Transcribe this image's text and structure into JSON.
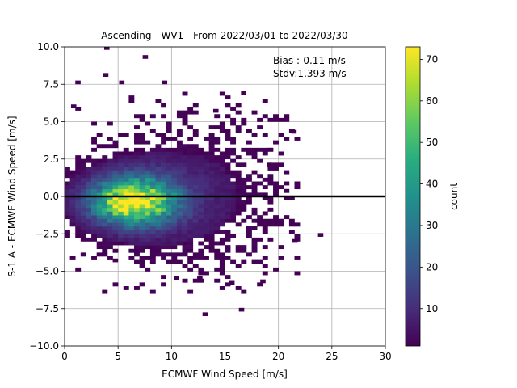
{
  "chart_data": {
    "type": "heatmap",
    "title": "Ascending - WV1 - From 2022/03/01 to 2022/03/30",
    "xlabel": "ECMWF Wind Speed [m/s]",
    "ylabel": "S-1 A - ECMWF Wind Speed [m/s]",
    "xlim": [
      0,
      30
    ],
    "ylim": [
      -10,
      10
    ],
    "x_ticks": [
      "0",
      "5",
      "10",
      "15",
      "20",
      "25",
      "30"
    ],
    "y_ticks": [
      "−10.0",
      "−7.5",
      "−5.0",
      "−2.5",
      "0.0",
      "2.5",
      "5.0",
      "7.5",
      "10.0"
    ],
    "grid": true,
    "reference_line_y": 0,
    "annotation": [
      "Bias :-0.11 m/s",
      "Stdv:1.393 m/s"
    ],
    "colorbar": {
      "label": "count",
      "colormap": "viridis",
      "range": [
        1,
        73
      ],
      "ticks": [
        "10",
        "20",
        "30",
        "40",
        "50",
        "60",
        "70"
      ]
    },
    "density_peak": {
      "x": 6.5,
      "y": -0.3,
      "count": 73
    },
    "sparse_bins": [
      [
        3.7,
        9.8
      ],
      [
        7.3,
        9.2
      ],
      [
        3.6,
        8.0
      ],
      [
        1.0,
        7.5
      ],
      [
        5.1,
        7.5
      ],
      [
        9.1,
        7.5
      ],
      [
        16.5,
        6.8
      ],
      [
        0.6,
        5.9
      ],
      [
        13.9,
        5.6
      ],
      [
        21.2,
        4.2
      ],
      [
        19.0,
        3.0
      ],
      [
        18.9,
        2.0
      ],
      [
        23.7,
        -2.7
      ],
      [
        21.3,
        -3.1
      ],
      [
        4.5,
        -4.4
      ],
      [
        10.2,
        -5.6
      ],
      [
        12.4,
        -5.6
      ],
      [
        15.4,
        -5.9
      ],
      [
        18.3,
        -5.8
      ],
      [
        12.9,
        -8.0
      ],
      [
        16.3,
        -7.7
      ]
    ]
  }
}
